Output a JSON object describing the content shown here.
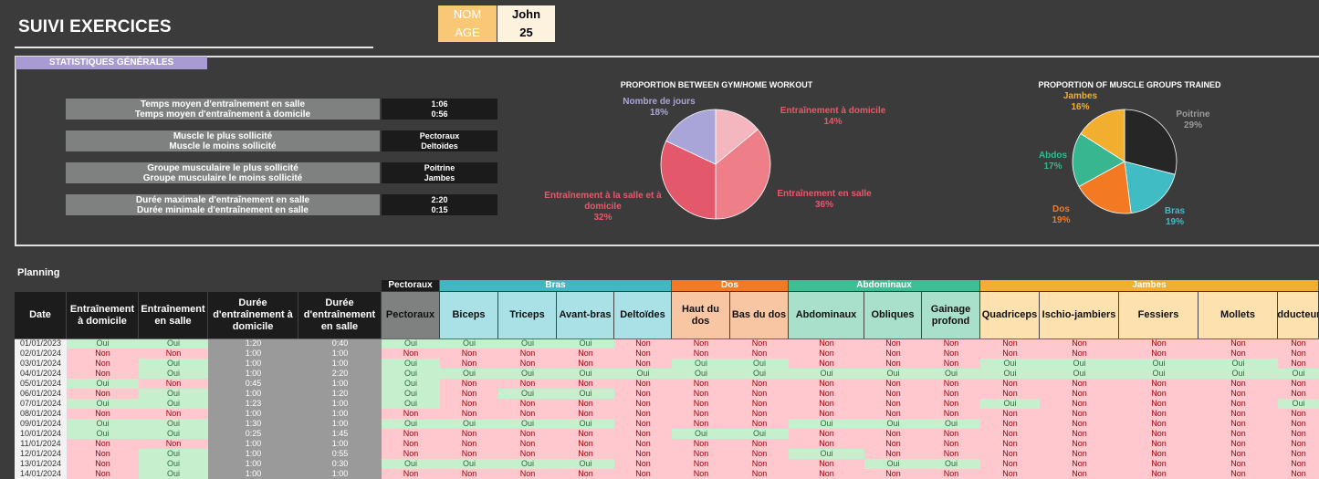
{
  "header": {
    "title": "SUIVI EXERCICES",
    "nom_label": "NOM",
    "nom_value": "John",
    "age_label": "AGE",
    "age_value": "25"
  },
  "stats": {
    "tab_label": "STATISTIQUES GÉNÉRALES",
    "rows": [
      {
        "l1": "Temps moyen d'entraînement en salle",
        "l2": "Temps moyen d'entraînement à domicile",
        "v1": "1:06",
        "v2": "0:56"
      },
      {
        "l1": "Muscle le plus sollicité",
        "l2": "Muscle le moins sollicité",
        "v1": "Pectoraux",
        "v2": "Deltoïdes"
      },
      {
        "l1": "Groupe musculaire le plus sollicité",
        "l2": "Groupe musculaire le moins sollicité",
        "v1": "Poitrine",
        "v2": "Jambes"
      },
      {
        "l1": "Durée maximale d'entraînement en salle",
        "l2": "Durée minimale d'entraînement en salle",
        "v1": "2:20",
        "v2": "0:15"
      }
    ]
  },
  "chart_data": [
    {
      "type": "pie",
      "title": "PROPORTION BETWEEN GYM/HOME WORKOUT",
      "slices": [
        {
          "label": "Entraînement à domicile",
          "value": 14,
          "pct": "14%",
          "color": "#f4b6bf"
        },
        {
          "label": "Entraînement en salle",
          "value": 36,
          "pct": "36%",
          "color": "#ee7f88"
        },
        {
          "label": "Entraînement à la salle et à domicile",
          "value": 32,
          "pct": "32%",
          "color": "#e3586a"
        },
        {
          "label": "Nombre de jours",
          "value": 18,
          "pct": "18%",
          "color": "#a9a5d8"
        }
      ]
    },
    {
      "type": "pie",
      "title": "PROPORTION OF MUSCLE GROUPS TRAINED",
      "slices": [
        {
          "label": "Poitrine",
          "value": 29,
          "pct": "29%",
          "color": "#262626"
        },
        {
          "label": "Bras",
          "value": 19,
          "pct": "19%",
          "color": "#3fbcc4"
        },
        {
          "label": "Dos",
          "value": 19,
          "pct": "19%",
          "color": "#f37a22"
        },
        {
          "label": "Abdos",
          "value": 17,
          "pct": "17%",
          "color": "#37b68f"
        },
        {
          "label": "Jambes",
          "value": 16,
          "pct": "16%",
          "color": "#f2ae2e"
        }
      ]
    }
  ],
  "planning": {
    "title": "Planning",
    "groups": [
      {
        "label": "Pectoraux",
        "color": "#3b3b3b",
        "text": "#ffffff"
      },
      {
        "label": "Bras",
        "color": "#3fb8c4",
        "text": "#ffffff"
      },
      {
        "label": "Dos",
        "color": "#f37a22",
        "text": "#ffffff"
      },
      {
        "label": "Abdominaux",
        "color": "#3bbf95",
        "text": "#ffffff"
      },
      {
        "label": "Jambes",
        "color": "#f4ae2f",
        "text": "#ffffff"
      }
    ],
    "columns": [
      "Date",
      "Entraînement à domicile",
      "Entraînement en salle",
      "Durée d'entraînement à domicile",
      "Durée d'entraînement en salle",
      "Pectoraux",
      "Biceps",
      "Triceps",
      "Avant-bras",
      "Deltoïdes",
      "Haut du dos",
      "Bas du dos",
      "Abdominaux",
      "Obliques",
      "Gainage profond",
      "Quadriceps",
      "Ischio-jambiers",
      "Fessiers",
      "Mollets",
      "Adducteurs"
    ],
    "rows": [
      [
        "01/01/2023",
        "Oui",
        "Oui",
        "1:20",
        "0:40",
        "Oui",
        "Oui",
        "Oui",
        "Oui",
        "Non",
        "Non",
        "Non",
        "Non",
        "Non",
        "Non",
        "Non",
        "Non",
        "Non",
        "Non",
        "Non"
      ],
      [
        "02/01/2024",
        "Non",
        "Non",
        "1:00",
        "1:00",
        "Non",
        "Non",
        "Non",
        "Non",
        "Non",
        "Non",
        "Non",
        "Non",
        "Non",
        "Non",
        "Non",
        "Non",
        "Non",
        "Non",
        "Non"
      ],
      [
        "03/01/2024",
        "Non",
        "Oui",
        "1:00",
        "1:00",
        "Oui",
        "Non",
        "Non",
        "Non",
        "Non",
        "Oui",
        "Oui",
        "Non",
        "Non",
        "Non",
        "Oui",
        "Oui",
        "Oui",
        "Oui",
        "Non"
      ],
      [
        "04/01/2024",
        "Non",
        "Oui",
        "1:00",
        "2:20",
        "Oui",
        "Oui",
        "Oui",
        "Oui",
        "Oui",
        "Oui",
        "Oui",
        "Oui",
        "Oui",
        "Oui",
        "Oui",
        "Oui",
        "Oui",
        "Oui",
        "Oui"
      ],
      [
        "05/01/2024",
        "Oui",
        "Non",
        "0:45",
        "1:00",
        "Oui",
        "Non",
        "Non",
        "Non",
        "Non",
        "Non",
        "Non",
        "Non",
        "Non",
        "Non",
        "Non",
        "Non",
        "Non",
        "Non",
        "Non"
      ],
      [
        "06/01/2024",
        "Non",
        "Oui",
        "1:00",
        "1:20",
        "Oui",
        "Non",
        "Oui",
        "Oui",
        "Non",
        "Non",
        "Non",
        "Non",
        "Non",
        "Non",
        "Non",
        "Non",
        "Non",
        "Non",
        "Non"
      ],
      [
        "07/01/2024",
        "Oui",
        "Oui",
        "1:23",
        "1:00",
        "Oui",
        "Non",
        "Non",
        "Non",
        "Non",
        "Non",
        "Non",
        "Non",
        "Non",
        "Non",
        "Oui",
        "Non",
        "Non",
        "Non",
        "Oui"
      ],
      [
        "08/01/2024",
        "Non",
        "Non",
        "1:00",
        "1:00",
        "Non",
        "Non",
        "Non",
        "Non",
        "Non",
        "Non",
        "Non",
        "Non",
        "Non",
        "Non",
        "Non",
        "Non",
        "Non",
        "Non",
        "Non"
      ],
      [
        "09/01/2024",
        "Oui",
        "Oui",
        "1:30",
        "1:00",
        "Oui",
        "Oui",
        "Oui",
        "Oui",
        "Non",
        "Non",
        "Non",
        "Oui",
        "Oui",
        "Oui",
        "Non",
        "Non",
        "Non",
        "Non",
        "Non"
      ],
      [
        "10/01/2024",
        "Oui",
        "Oui",
        "0:25",
        "1:45",
        "Non",
        "Non",
        "Non",
        "Non",
        "Non",
        "Oui",
        "Oui",
        "Non",
        "Non",
        "Non",
        "Non",
        "Non",
        "Non",
        "Non",
        "Non"
      ],
      [
        "11/01/2024",
        "Non",
        "Non",
        "1:00",
        "1:00",
        "Non",
        "Non",
        "Non",
        "Non",
        "Non",
        "Non",
        "Non",
        "Non",
        "Non",
        "Non",
        "Non",
        "Non",
        "Non",
        "Non",
        "Non"
      ],
      [
        "12/01/2024",
        "Non",
        "Oui",
        "1:00",
        "0:55",
        "Non",
        "Non",
        "Non",
        "Non",
        "Non",
        "Non",
        "Non",
        "Oui",
        "Non",
        "Non",
        "Non",
        "Non",
        "Non",
        "Non",
        "Non"
      ],
      [
        "13/01/2024",
        "Non",
        "Oui",
        "1:00",
        "0:30",
        "Oui",
        "Oui",
        "Oui",
        "Oui",
        "Non",
        "Non",
        "Non",
        "Non",
        "Oui",
        "Oui",
        "Non",
        "Non",
        "Non",
        "Non",
        "Non"
      ],
      [
        "14/01/2024",
        "Non",
        "Oui",
        "1:00",
        "1:00",
        "Non",
        "Non",
        "Non",
        "Non",
        "Non",
        "Non",
        "Non",
        "Non",
        "Non",
        "Non",
        "Non",
        "Non",
        "Non",
        "Non",
        "Non"
      ]
    ]
  }
}
